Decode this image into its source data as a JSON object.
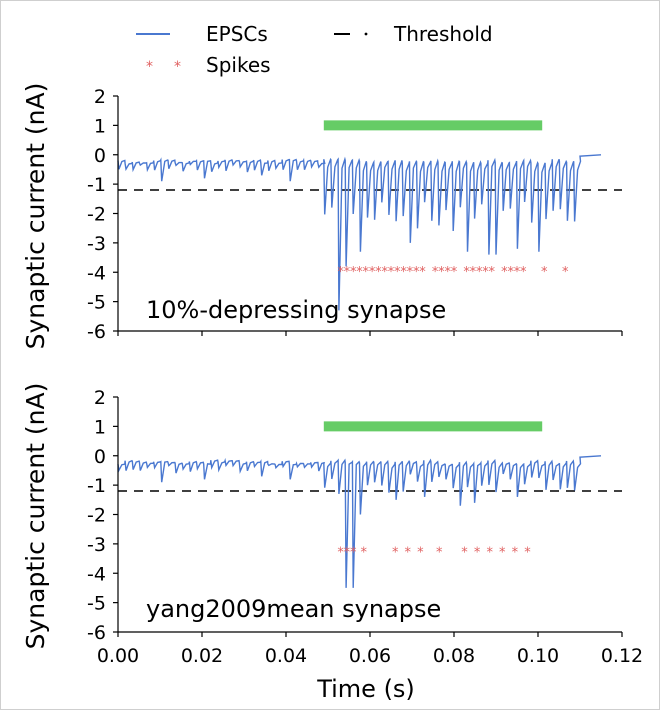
{
  "chart_data": [
    {
      "type": "line",
      "annotation": "10%-depressing synapse",
      "ylabel": "Synaptic current (nA)",
      "xlabel": "",
      "xlim": [
        0.0,
        0.12
      ],
      "ylim": [
        -6,
        2
      ],
      "yticks": [
        "2",
        "1",
        "0",
        "-1",
        "-2",
        "-3",
        "-4",
        "-5",
        "-6"
      ],
      "xticks": [],
      "threshold": -1.2,
      "stimulus_bar": {
        "x_start": 0.049,
        "x_end": 0.101,
        "y": 1.0,
        "color": "#66cc66"
      },
      "series": [
        {
          "name": "EPSCs",
          "color": "#4a78d0",
          "events": [
            {
              "t_start": 0.0,
              "t_end": 0.049,
              "interval": 0.0017,
              "amplitude": [
                0.3,
                0.6
              ],
              "big": [
                [
                  0.01,
                  -0.9
                ],
                [
                  0.021,
                  -0.8
                ],
                [
                  0.034,
                  -0.7
                ],
                [
                  0.041,
                  -0.9
                ]
              ]
            },
            {
              "t_start": 0.049,
              "t_end": 0.109,
              "interval": 0.0017,
              "amplitude": [
                1.6,
                2.6
              ],
              "big": [
                [
                  0.05,
                  -1.8
                ],
                [
                  0.052,
                  -2.4
                ],
                [
                  0.053,
                  -5.3
                ],
                [
                  0.0545,
                  -3.8
                ],
                [
                  0.057,
                  -3.3
                ],
                [
                  0.07,
                  -3.0
                ],
                [
                  0.083,
                  -3.3
                ],
                [
                  0.089,
                  -3.4
                ],
                [
                  0.095,
                  -3.2
                ],
                [
                  0.1,
                  -3.3
                ]
              ]
            }
          ],
          "baseline_end": 0.115
        },
        {
          "name": "Spikes",
          "color": "#e06060",
          "y": -3.85,
          "x": [
            0.053,
            0.0545,
            0.056,
            0.0575,
            0.059,
            0.0605,
            0.062,
            0.0635,
            0.065,
            0.0665,
            0.068,
            0.0695,
            0.071,
            0.0725,
            0.0755,
            0.077,
            0.0785,
            0.08,
            0.083,
            0.0845,
            0.086,
            0.0875,
            0.089,
            0.092,
            0.0935,
            0.095,
            0.0965,
            0.1015,
            0.1065
          ]
        },
        {
          "name": "Threshold",
          "color": "#000000",
          "y": -1.2
        }
      ]
    },
    {
      "type": "line",
      "annotation": "yang2009mean synapse",
      "ylabel": "Synaptic current (nA)",
      "xlabel": "Time (s)",
      "xlim": [
        0.0,
        0.12
      ],
      "ylim": [
        -6,
        2
      ],
      "yticks": [
        "2",
        "1",
        "0",
        "-1",
        "-2",
        "-3",
        "-4",
        "-5",
        "-6"
      ],
      "xticks": [
        "0.00",
        "0.02",
        "0.04",
        "0.06",
        "0.08",
        "0.10",
        "0.12"
      ],
      "threshold": -1.2,
      "stimulus_bar": {
        "x_start": 0.049,
        "x_end": 0.101,
        "y": 1.0,
        "color": "#66cc66"
      },
      "series": [
        {
          "name": "EPSCs",
          "color": "#4a78d0",
          "events": [
            {
              "t_start": 0.0,
              "t_end": 0.049,
              "interval": 0.0017,
              "amplitude": [
                0.3,
                0.6
              ],
              "big": [
                [
                  0.01,
                  -0.9
                ],
                [
                  0.021,
                  -0.8
                ],
                [
                  0.034,
                  -0.7
                ],
                [
                  0.041,
                  -0.8
                ]
              ]
            },
            {
              "t_start": 0.049,
              "t_end": 0.109,
              "interval": 0.0017,
              "amplitude": [
                0.6,
                1.3
              ],
              "big": [
                [
                  0.052,
                  -1.3
                ],
                [
                  0.0535,
                  -1.8
                ],
                [
                  0.055,
                  -4.5
                ],
                [
                  0.057,
                  -2.0
                ],
                [
                  0.066,
                  -1.5
                ],
                [
                  0.073,
                  -1.4
                ],
                [
                  0.082,
                  -1.7
                ],
                [
                  0.085,
                  -1.6
                ],
                [
                  0.095,
                  -1.4
                ]
              ]
            }
          ],
          "baseline_end": 0.115
        },
        {
          "name": "Spikes",
          "color": "#e06060",
          "y": -3.15,
          "x": [
            0.053,
            0.0545,
            0.056,
            0.0585,
            0.066,
            0.069,
            0.072,
            0.0765,
            0.0825,
            0.0855,
            0.0885,
            0.0915,
            0.0945,
            0.0975
          ]
        },
        {
          "name": "Threshold",
          "color": "#000000",
          "y": -1.2
        }
      ]
    }
  ],
  "legend": {
    "placement": "top",
    "entries": [
      {
        "label": "EPSCs",
        "style": "line",
        "color": "#4a78d0"
      },
      {
        "label": "Threshold",
        "style": "dash-dot",
        "color": "#000000"
      },
      {
        "label": "Spikes",
        "style": "star",
        "color": "#e06060"
      }
    ]
  }
}
